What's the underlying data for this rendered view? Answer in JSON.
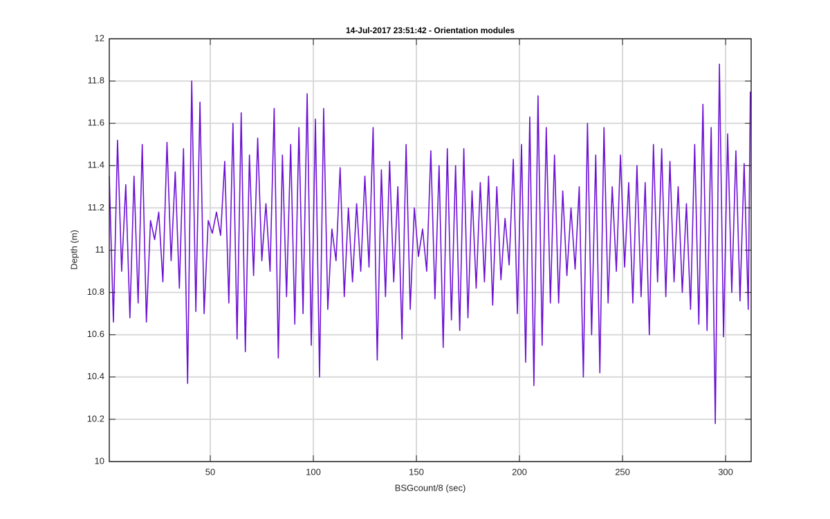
{
  "chart_data": {
    "type": "line",
    "title": "14-Jul-2017 23:51:42 - Orientation modules",
    "x_label": "BSGcount/8 (sec)",
    "y_label": "Depth (m)",
    "xlim": [
      1,
      312.4
    ],
    "ylim": [
      10,
      12
    ],
    "xticks": [
      50,
      100,
      150,
      200,
      250,
      300
    ],
    "yticks": [
      10,
      10.2,
      10.4,
      10.6,
      10.8,
      11,
      11.2,
      11.4,
      11.6,
      11.8,
      12
    ],
    "grid": true,
    "series": [
      {
        "color": "#6c10d4",
        "x": [
          1,
          3,
          5,
          7,
          9,
          11,
          13,
          15,
          17,
          19,
          21,
          23,
          25,
          27,
          29,
          31,
          33,
          35,
          37,
          39,
          41,
          43,
          45,
          47,
          49,
          51,
          53,
          55,
          57,
          59,
          61,
          63,
          65,
          67,
          69,
          71,
          73,
          75,
          77,
          79,
          81,
          83,
          85,
          87,
          89,
          91,
          93,
          95,
          97,
          99,
          101,
          103,
          105,
          107,
          109,
          111,
          113,
          115,
          117,
          119,
          121,
          123,
          125,
          127,
          129,
          131,
          133,
          135,
          137,
          139,
          141,
          143,
          145,
          147,
          149,
          151,
          153,
          155,
          157,
          159,
          161,
          163,
          165,
          167,
          169,
          171,
          173,
          175,
          177,
          179,
          181,
          183,
          185,
          187,
          189,
          191,
          193,
          195,
          197,
          199,
          201,
          203,
          205,
          207,
          209,
          211,
          213,
          215,
          217,
          219,
          221,
          223,
          225,
          227,
          229,
          231,
          233,
          235,
          237,
          239,
          241,
          243,
          245,
          247,
          249,
          251,
          253,
          255,
          257,
          259,
          261,
          263,
          265,
          267,
          269,
          271,
          273,
          275,
          277,
          279,
          281,
          283,
          285,
          287,
          289,
          291,
          293,
          295,
          297,
          299,
          301,
          303,
          305,
          307,
          309,
          311,
          312
        ],
        "values": [
          11.35,
          10.66,
          11.52,
          10.9,
          11.31,
          10.68,
          11.35,
          10.75,
          11.5,
          10.66,
          11.14,
          11.05,
          11.18,
          10.85,
          11.51,
          10.95,
          11.37,
          10.82,
          11.48,
          10.37,
          11.8,
          10.71,
          11.7,
          10.7,
          11.14,
          11.08,
          11.18,
          11.07,
          11.42,
          10.75,
          11.6,
          10.58,
          11.65,
          10.52,
          11.45,
          10.88,
          11.53,
          10.95,
          11.22,
          10.9,
          11.67,
          10.49,
          11.45,
          10.78,
          11.5,
          10.65,
          11.58,
          10.7,
          11.74,
          10.55,
          11.62,
          10.4,
          11.67,
          10.72,
          11.1,
          10.95,
          11.39,
          10.78,
          11.2,
          10.85,
          11.22,
          10.9,
          11.35,
          10.92,
          11.58,
          10.48,
          11.38,
          10.78,
          11.42,
          10.85,
          11.3,
          10.58,
          11.5,
          10.72,
          11.2,
          10.97,
          11.1,
          10.9,
          11.47,
          10.77,
          11.4,
          10.54,
          11.48,
          10.67,
          11.4,
          10.62,
          11.48,
          10.68,
          11.28,
          10.82,
          11.32,
          10.85,
          11.35,
          10.74,
          11.3,
          10.86,
          11.15,
          10.93,
          11.43,
          10.7,
          11.5,
          10.47,
          11.63,
          10.36,
          11.73,
          10.55,
          11.58,
          10.75,
          11.45,
          10.75,
          11.28,
          10.88,
          11.2,
          10.91,
          11.3,
          10.4,
          11.6,
          10.6,
          11.45,
          10.42,
          11.58,
          10.75,
          11.3,
          10.9,
          11.45,
          10.92,
          11.32,
          10.75,
          11.4,
          10.78,
          11.32,
          10.6,
          11.5,
          10.85,
          11.48,
          10.78,
          11.42,
          10.85,
          11.3,
          10.8,
          11.22,
          10.72,
          11.5,
          10.65,
          11.69,
          10.62,
          11.58,
          10.18,
          11.88,
          10.59,
          11.55,
          10.8,
          11.47,
          10.76,
          11.41,
          10.72,
          11.75
        ]
      }
    ]
  }
}
